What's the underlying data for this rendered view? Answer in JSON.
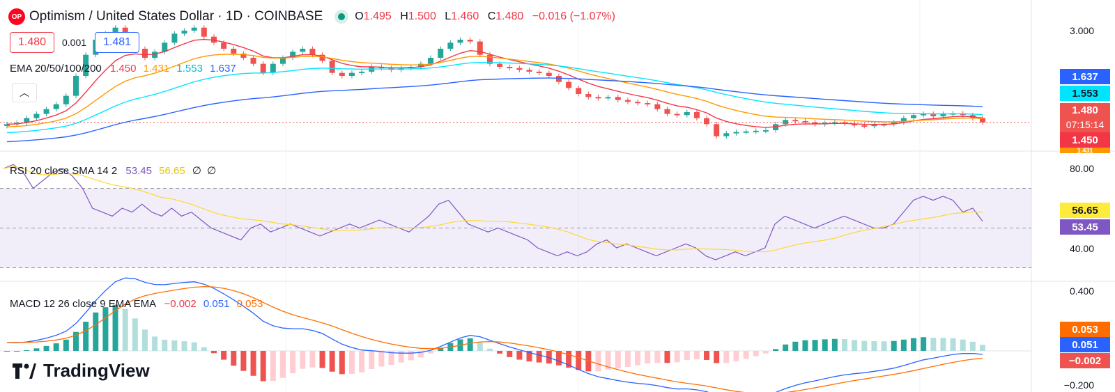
{
  "header": {
    "logo_text": "OP",
    "title": "Optimism / United States Dollar · 1D · COINBASE",
    "open_label": "O",
    "open": "1.495",
    "high_label": "H",
    "high": "1.500",
    "low_label": "L",
    "low": "1.460",
    "close_label": "C",
    "close": "1.480",
    "change": "−0.016 (−1.07%)"
  },
  "trade": {
    "sell": "1.480",
    "spread": "0.001",
    "buy": "1.481"
  },
  "ema": {
    "label": "EMA 20/50/100/200",
    "v20": "1.450",
    "v50": "1.431",
    "v100": "1.553",
    "v200": "1.637"
  },
  "rsi": {
    "label": "RSI 20 close SMA 14 2",
    "rsi": "53.45",
    "sma": "56.65",
    "e1": "∅",
    "e2": "∅"
  },
  "macd": {
    "label": "MACD 12 26 close 9 EMA EMA",
    "hist": "−0.002",
    "macd": "0.051",
    "signal": "0.053"
  },
  "axis": {
    "price_top": "3.000",
    "rsi_top": "80.00",
    "rsi_bottom": "40.00",
    "macd_top": "0.400",
    "macd_bottom": "−0.200"
  },
  "tags": {
    "ema200": "1.637",
    "ema100": "1.553",
    "price": "1.480",
    "countdown": "07:15:14",
    "ema20": "1.450",
    "ema50": "1.431",
    "sma": "56.65",
    "rsi": "53.45",
    "signal": "0.053",
    "macd": "0.051",
    "hist": "−0.002"
  },
  "brand": "TradingView",
  "colors": {
    "up": "#26a69a",
    "down": "#ef5350",
    "ema20": "#f23645",
    "ema50": "#ff9800",
    "ema100": "#00e5ff",
    "ema200": "#2962ff",
    "rsi": "#7e57c2",
    "rsi_sma": "#fdd835",
    "macd": "#2962ff",
    "signal": "#ff6d00"
  },
  "chart_data": [
    {
      "type": "candlestick",
      "name_shown": "Optimism / United States Dollar",
      "points": 100,
      "close_path": [
        1.45,
        1.47,
        1.55,
        1.62,
        1.7,
        1.78,
        1.92,
        2.25,
        2.6,
        2.85,
        2.95,
        3.05,
        2.9,
        2.7,
        2.55,
        2.65,
        2.8,
        2.95,
        3.0,
        3.05,
        2.9,
        2.8,
        2.7,
        2.62,
        2.55,
        2.45,
        2.3,
        2.45,
        2.55,
        2.65,
        2.7,
        2.6,
        2.5,
        2.3,
        2.25,
        2.3,
        2.32,
        2.4,
        2.38,
        2.35,
        2.38,
        2.4,
        2.45,
        2.55,
        2.7,
        2.8,
        2.85,
        2.82,
        2.6,
        2.45,
        2.4,
        2.38,
        2.35,
        2.32,
        2.3,
        2.25,
        2.15,
        2.05,
        1.95,
        1.9,
        1.88,
        1.9,
        1.85,
        1.82,
        1.8,
        1.78,
        1.7,
        1.62,
        1.6,
        1.65,
        1.55,
        1.45,
        1.25,
        1.3,
        1.32,
        1.33,
        1.34,
        1.35,
        1.45,
        1.52,
        1.5,
        1.48,
        1.45,
        1.47,
        1.48,
        1.46,
        1.43,
        1.42,
        1.44,
        1.45,
        1.48,
        1.55,
        1.6,
        1.62,
        1.58,
        1.62,
        1.63,
        1.6,
        1.55,
        1.48
      ],
      "ema20_last": 1.45,
      "ema50_last": 1.431,
      "ema100_last": 1.553,
      "ema200_last": 1.637
    },
    {
      "type": "line",
      "name_shown": "RSI 20 close SMA 14 2",
      "ylim": [
        30,
        90
      ],
      "rsi": [
        80,
        82,
        78,
        70,
        74,
        78,
        80,
        76,
        70,
        60,
        58,
        56,
        60,
        58,
        62,
        58,
        56,
        60,
        56,
        58,
        54,
        50,
        48,
        46,
        44,
        50,
        52,
        48,
        50,
        52,
        50,
        48,
        46,
        48,
        50,
        52,
        50,
        52,
        54,
        52,
        50,
        48,
        52,
        56,
        62,
        64,
        58,
        52,
        50,
        48,
        50,
        48,
        46,
        44,
        40,
        38,
        36,
        38,
        36,
        38,
        42,
        44,
        40,
        42,
        40,
        38,
        36,
        38,
        40,
        42,
        40,
        36,
        34,
        36,
        38,
        36,
        38,
        40,
        52,
        56,
        54,
        52,
        50,
        52,
        54,
        56,
        54,
        52,
        50,
        50,
        52,
        58,
        64,
        66,
        64,
        66,
        64,
        58,
        60,
        53.45
      ],
      "sma_last": 56.65,
      "rsi_last": 53.45
    },
    {
      "type": "line",
      "name_shown": "MACD 12 26 close 9 EMA EMA",
      "ylim": [
        -0.2,
        0.4
      ],
      "macd_last": 0.051,
      "signal_last": 0.053,
      "hist_last": -0.002
    }
  ]
}
